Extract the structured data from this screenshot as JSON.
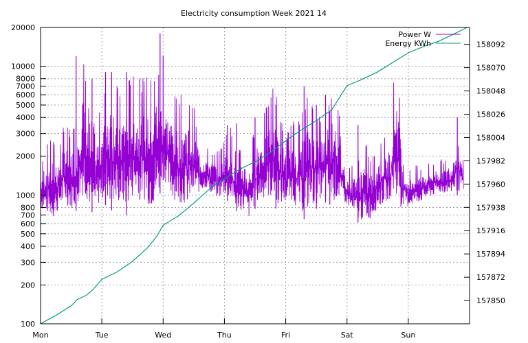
{
  "chart_data": {
    "type": "line",
    "title": "Electricity consumption Week 2021 14",
    "xlabel": "",
    "ylabel": "",
    "y2label": "",
    "x_categories": [
      "Mon",
      "Tue",
      "Wed",
      "Thu",
      "Fri",
      "Sat",
      "Sun"
    ],
    "x_range_days": [
      0,
      7
    ],
    "y_scale": "log",
    "ylim": [
      100,
      20000
    ],
    "y_ticks": [
      100,
      200,
      300,
      400,
      500,
      600,
      700,
      800,
      1000,
      2000,
      3000,
      4000,
      5000,
      6000,
      7000,
      8000,
      10000,
      20000
    ],
    "y2_scale": "linear",
    "y2lim": [
      157828,
      158108
    ],
    "y2_ticks": [
      157850,
      157872,
      157894,
      157916,
      157938,
      157960,
      157982,
      158004,
      158026,
      158048,
      158070,
      158092
    ],
    "grid": true,
    "legend_position": "top-right",
    "series": [
      {
        "name": "Power W",
        "axis": "left",
        "color": "#9400d3",
        "x": [
          0.0,
          0.1,
          0.2,
          0.3,
          0.4,
          0.5,
          0.6,
          0.7,
          0.8,
          0.9,
          1.0,
          1.1,
          1.2,
          1.3,
          1.4,
          1.5,
          1.6,
          1.7,
          1.8,
          1.9,
          2.0,
          2.1,
          2.2,
          2.3,
          2.4,
          2.5,
          2.6,
          2.7,
          2.8,
          2.9,
          3.0,
          3.1,
          3.2,
          3.3,
          3.4,
          3.5,
          3.6,
          3.7,
          3.8,
          3.9,
          4.0,
          4.1,
          4.2,
          4.3,
          4.4,
          4.5,
          4.6,
          4.7,
          4.8,
          4.9,
          5.0,
          5.1,
          5.2,
          5.3,
          5.4,
          5.5,
          5.6,
          5.7,
          5.8,
          5.9,
          6.0,
          6.1,
          6.2,
          6.3,
          6.4,
          6.5,
          6.6,
          6.7,
          6.8,
          6.9
        ],
        "low": [
          750,
          680,
          600,
          720,
          800,
          720,
          760,
          900,
          760,
          700,
          860,
          820,
          720,
          780,
          700,
          850,
          950,
          800,
          700,
          750,
          1300,
          900,
          820,
          780,
          760,
          900,
          1000,
          1100,
          950,
          900,
          950,
          850,
          750,
          700,
          620,
          780,
          850,
          900,
          800,
          760,
          800,
          850,
          700,
          650,
          700,
          780,
          900,
          850,
          800,
          820,
          820,
          650,
          600,
          580,
          620,
          750,
          800,
          900,
          850,
          800,
          780,
          820,
          850,
          900,
          950,
          1000,
          1000,
          1000,
          1000,
          1000
        ],
        "high": [
          1700,
          2500,
          2800,
          2600,
          3800,
          3000,
          5000,
          12000,
          4000,
          3500,
          5000,
          9000,
          9000,
          6000,
          8500,
          9000,
          6000,
          9000,
          8500,
          12000,
          7000,
          6000,
          6000,
          6000,
          6000,
          5000,
          2500,
          2400,
          2200,
          2200,
          3000,
          3500,
          2000,
          2600,
          2000,
          3500,
          4000,
          5000,
          8000,
          4500,
          3000,
          3800,
          4000,
          5000,
          7000,
          5000,
          4000,
          6000,
          8500,
          3000,
          1600,
          1800,
          2200,
          2600,
          2000,
          2500,
          3000,
          2200,
          12000,
          2000,
          1600,
          1700,
          1700,
          1800,
          1800,
          1900,
          1900,
          2000,
          3800,
          1800
        ],
        "spikes_x": [
          0.58,
          0.84,
          1.06,
          1.16,
          1.4,
          1.62,
          1.95,
          2.0,
          3.2,
          3.05,
          3.5,
          3.84,
          4.3,
          4.5,
          4.65,
          4.72,
          5.18,
          5.88,
          6.8
        ],
        "spikes_y": [
          12000,
          8000,
          9000,
          9000,
          9000,
          8000,
          18000,
          12000,
          3600,
          3500,
          4000,
          5000,
          7000,
          5000,
          6000,
          4500,
          3500,
          2300,
          4000
        ]
      },
      {
        "name": "Energy KWh",
        "axis": "right",
        "color": "#009e73",
        "x": [
          0.0,
          0.25,
          0.5,
          0.6,
          0.75,
          0.85,
          1.0,
          1.25,
          1.5,
          1.75,
          1.9,
          2.0,
          2.25,
          2.5,
          2.75,
          3.0,
          3.25,
          3.5,
          3.75,
          4.0,
          4.25,
          4.5,
          4.75,
          5.0,
          5.25,
          5.5,
          5.75,
          6.0,
          6.25,
          6.5,
          6.75,
          6.96
        ],
        "y": [
          157828,
          157836,
          157845,
          157851,
          157855,
          157860,
          157870,
          157877,
          157887,
          157900,
          157911,
          157921,
          157930,
          157942,
          157955,
          157965,
          157974,
          157981,
          157990,
          158001,
          158011,
          158020,
          158030,
          158053,
          158059,
          158066,
          158075,
          158084,
          158090,
          158095,
          158102,
          158108
        ]
      }
    ]
  }
}
